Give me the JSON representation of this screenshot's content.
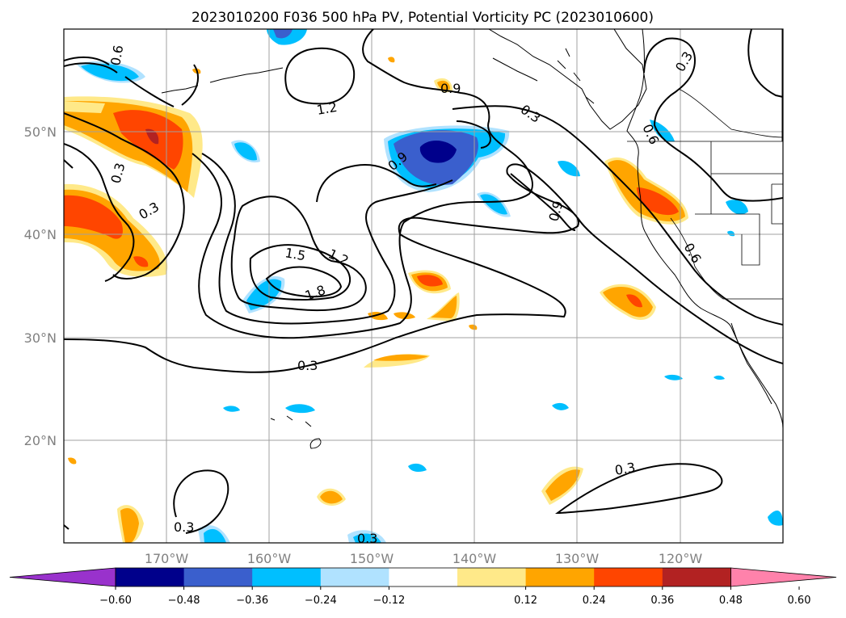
{
  "title": "2023010200 F036 500 hPa PV, Potential Vorticity PC (2023010600)",
  "lat_labels": [
    "50°N",
    "40°N",
    "30°N",
    "20°N"
  ],
  "lon_labels": [
    "170°W",
    "160°W",
    "150°W",
    "140°W",
    "130°W",
    "120°W"
  ],
  "colorbar": {
    "tick_labels": [
      "−0.60",
      "−0.48",
      "−0.36",
      "−0.24",
      "−0.12",
      "0.12",
      "0.24",
      "0.36",
      "0.48",
      "0.60"
    ],
    "colors": [
      "#9932cc",
      "#00008b",
      "#3a5fcd",
      "#00bfff",
      "#b0e2ff",
      "#ffffff",
      "#ffe989",
      "#ffa500",
      "#ff4500",
      "#b22222",
      "#ff82ab"
    ]
  },
  "contour_labels": [
    "0.3",
    "0.6",
    "0.9",
    "1.2",
    "1.5",
    "1.8",
    "0.6",
    "0.3",
    "1.2",
    "0.6",
    "0.3",
    "0.9",
    "0.9",
    "0.3",
    "0.6",
    "0.6",
    "1.2",
    "1.5",
    "1.8",
    "0.3",
    "0.3",
    "0.3",
    "0.3",
    "0.3"
  ]
}
